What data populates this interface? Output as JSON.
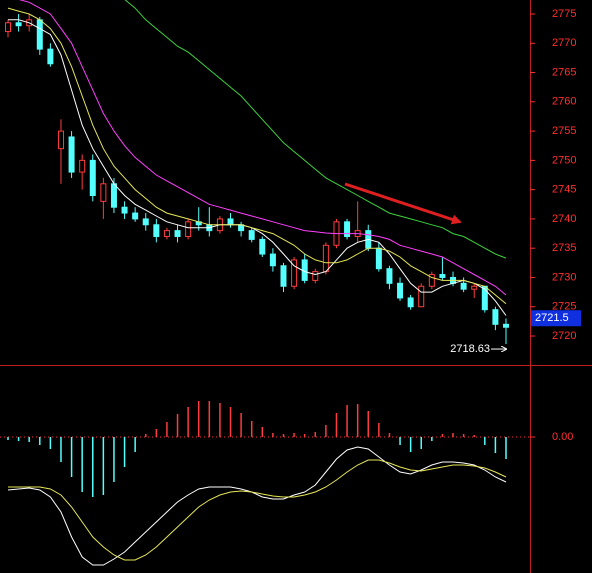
{
  "chart_data": [
    {
      "type": "candlestick",
      "open": [
        2772,
        2773.5,
        2773,
        2774,
        2769,
        2752,
        2754,
        2748,
        2750,
        2743,
        2746,
        2742,
        2741,
        2740,
        2739,
        2737,
        2738,
        2737,
        2739.5,
        2739,
        2738,
        2740,
        2739,
        2738,
        2736.5,
        2734,
        2732,
        2728.5,
        2733,
        2729.5,
        2731,
        2735.5,
        2739.5,
        2737,
        2738,
        2735,
        2731.5,
        2729,
        2726.5,
        2725,
        2728.5,
        2730.5,
        2730,
        2729,
        2728,
        2728.5,
        2724.5,
        2722
      ],
      "high": [
        2774,
        2775,
        2775,
        2774.5,
        2770,
        2757,
        2755,
        2751,
        2751,
        2747,
        2747,
        2743,
        2742,
        2741,
        2740,
        2738.5,
        2739,
        2740,
        2742,
        2742,
        2740.5,
        2741,
        2739.5,
        2738.5,
        2737,
        2735,
        2732.5,
        2733.5,
        2734,
        2731.5,
        2736,
        2740,
        2740,
        2743,
        2739,
        2736,
        2732,
        2730,
        2727,
        2729,
        2731,
        2733.5,
        2731,
        2730,
        2729,
        2728.5,
        2725,
        2723
      ],
      "low": [
        2771,
        2772,
        2772,
        2768,
        2766,
        2746,
        2747,
        2745,
        2743,
        2740,
        2741,
        2740,
        2739.5,
        2738,
        2736,
        2736.5,
        2736,
        2736.5,
        2738,
        2737,
        2737.5,
        2738.5,
        2737,
        2736,
        2733.5,
        2731,
        2727.5,
        2728,
        2729,
        2729,
        2730.5,
        2735,
        2736.5,
        2736,
        2734.5,
        2731,
        2728,
        2726,
        2724.5,
        2725,
        2728,
        2729.5,
        2728.5,
        2727.5,
        2726.5,
        2724,
        2721,
        2718.63
      ],
      "close": [
        2773.5,
        2773,
        2774,
        2769,
        2766.5,
        2755,
        2748,
        2750,
        2744,
        2746,
        2742,
        2741,
        2740,
        2739,
        2737,
        2738,
        2737,
        2739.5,
        2739,
        2738,
        2740,
        2739,
        2738,
        2736.5,
        2734,
        2732,
        2728.5,
        2733,
        2729.5,
        2731,
        2735.5,
        2739.5,
        2737,
        2738,
        2735,
        2731.5,
        2729,
        2726.5,
        2725,
        2728.5,
        2730.5,
        2730,
        2729,
        2728,
        2728.5,
        2724.5,
        2722,
        2721.5
      ],
      "up_color": "#ff3c3c",
      "down_color": "#54ffff",
      "series": [
        {
          "color": "#ffffff",
          "values": [
            2774,
            2774,
            2773.5,
            2772.5,
            2771.5,
            2768,
            2762,
            2756,
            2752,
            2749,
            2746,
            2744,
            2742.5,
            2741.5,
            2740.5,
            2739.5,
            2739,
            2738.5,
            2738.5,
            2738.5,
            2739,
            2739,
            2739,
            2738.5,
            2737.5,
            2736,
            2734,
            2732,
            2731,
            2730.5,
            2731,
            2733,
            2735,
            2736,
            2736.5,
            2736,
            2734,
            2731.5,
            2729,
            2727.5,
            2727.5,
            2728.5,
            2729,
            2729.5,
            2729,
            2728,
            2726,
            2723.5
          ]
        },
        {
          "color": "#e6e65a",
          "values": [
            2776,
            2775.5,
            2775,
            2774,
            2772.5,
            2770,
            2766,
            2761,
            2756,
            2752,
            2749,
            2747,
            2745,
            2743.5,
            2742,
            2741,
            2740.5,
            2740,
            2739.5,
            2739,
            2739,
            2739,
            2739,
            2738.5,
            2738,
            2737.5,
            2736.5,
            2735.5,
            2734,
            2733,
            2732.5,
            2732.5,
            2733,
            2734,
            2735,
            2735,
            2734.5,
            2733.5,
            2732,
            2731,
            2730,
            2729.5,
            2729.5,
            2729.5,
            2729,
            2728.5,
            2727,
            2725.5
          ]
        },
        {
          "color": "#ff40ff",
          "values": [
            2778,
            2777.5,
            2777,
            2776,
            2775,
            2772.5,
            2770,
            2766,
            2762,
            2758,
            2755,
            2752.5,
            2750.5,
            2749,
            2747.5,
            2746.5,
            2745.5,
            2744.5,
            2743.5,
            2742.5,
            2742,
            2741.5,
            2741,
            2740.5,
            2740,
            2739.5,
            2739,
            2738.5,
            2738,
            2737.8,
            2737.6,
            2737.5,
            2737.5,
            2737.5,
            2737.3,
            2737,
            2736.5,
            2735.5,
            2735,
            2734.5,
            2734,
            2733.5,
            2732.5,
            2731.5,
            2730.5,
            2729.5,
            2728.5,
            2727
          ]
        },
        {
          "color": "#3cd23c",
          "values": [
            null,
            null,
            null,
            null,
            null,
            null,
            null,
            null,
            null,
            null,
            null,
            2777.5,
            2776,
            2774,
            2772.5,
            2771,
            2769.5,
            2768.5,
            2767,
            2765.5,
            2764,
            2762.5,
            2761,
            2759,
            2757,
            2755,
            2753,
            2751.5,
            2750,
            2748.5,
            2747,
            2746,
            2745,
            2744,
            2743,
            2742,
            2741,
            2740.5,
            2740,
            2739.5,
            2739,
            2738.5,
            2737.5,
            2737,
            2736,
            2735,
            2734,
            2733.3
          ]
        }
      ],
      "ylim": [
        2715.05,
        2777.39
      ],
      "yticks": [
        2720,
        2725,
        2730,
        2735,
        2740,
        2745,
        2750,
        2755,
        2760,
        2765,
        2770,
        2775
      ],
      "axis_color": "#ff3030"
    },
    {
      "type": "macd",
      "histogram": [
        -0.3,
        -0.4,
        -0.5,
        -0.8,
        -1.2,
        -2.5,
        -4,
        -5.5,
        -6,
        -5.8,
        -4.5,
        -3,
        -1.5,
        0.3,
        0.8,
        1.5,
        2.3,
        3,
        3.6,
        3.6,
        3.4,
        3,
        2.4,
        1.6,
        1,
        0.4,
        0.3,
        0.4,
        0.3,
        0.5,
        1.2,
        2.4,
        3.2,
        3.3,
        2.6,
        1.4,
        0.4,
        -0.8,
        -1.5,
        -1.2,
        -0.4,
        0.3,
        0.4,
        0.3,
        0.2,
        -0.8,
        -1.6,
        -2.2
      ],
      "up_color": "#ff3c3c",
      "down_color": "#54ffff",
      "series": [
        {
          "color": "#ffffff",
          "values": [
            -5.3,
            -5.2,
            -5.1,
            -5.3,
            -6,
            -7.5,
            -10,
            -12,
            -12.8,
            -12.8,
            -12.2,
            -11.5,
            -10.5,
            -9.5,
            -8.5,
            -7.5,
            -6.5,
            -5.8,
            -5.2,
            -5,
            -5,
            -5,
            -5.2,
            -5.5,
            -6,
            -6.2,
            -6.2,
            -5.8,
            -5.5,
            -4.8,
            -3.5,
            -2.2,
            -1.3,
            -1,
            -1.2,
            -2,
            -2.8,
            -3.5,
            -3.7,
            -3.3,
            -2.8,
            -2.5,
            -2.5,
            -2.6,
            -2.8,
            -3.3,
            -4,
            -4.5
          ]
        },
        {
          "color": "#e6e65a",
          "values": [
            -5,
            -5,
            -5,
            -5,
            -5.2,
            -5.8,
            -7,
            -8.5,
            -10,
            -11,
            -11.8,
            -12.3,
            -12.3,
            -11.8,
            -11,
            -10,
            -9,
            -8,
            -7,
            -6.3,
            -5.8,
            -5.5,
            -5.4,
            -5.5,
            -5.7,
            -5.9,
            -6,
            -6,
            -5.8,
            -5.5,
            -5,
            -4.3,
            -3.5,
            -2.8,
            -2.3,
            -2.3,
            -2.6,
            -3,
            -3.3,
            -3.4,
            -3.2,
            -3,
            -2.8,
            -2.8,
            -2.9,
            -3.1,
            -3.5,
            -4
          ]
        }
      ],
      "ylim": [
        -13.6,
        7.0
      ],
      "yticks": [
        {
          "value": 0,
          "label": "0.00"
        }
      ],
      "axis_color": "#ff3030"
    }
  ]
}
